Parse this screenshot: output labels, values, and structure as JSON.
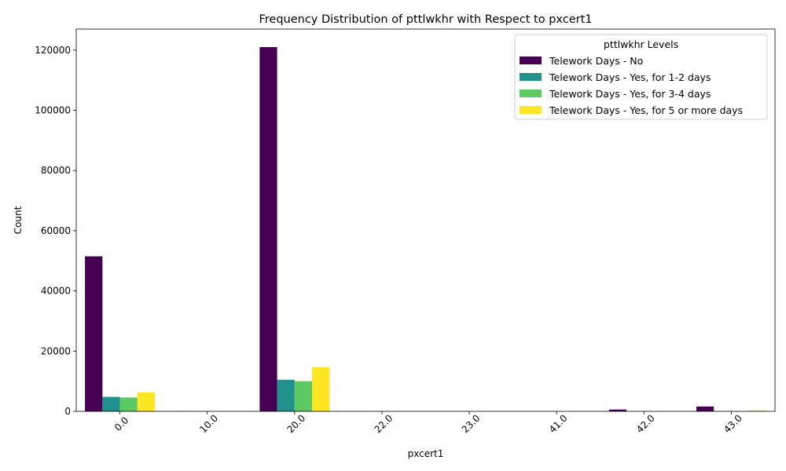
{
  "chart_data": {
    "type": "bar",
    "title": "Frequency Distribution of pttlwkhr with Respect to pxcert1",
    "xlabel": "pxcert1",
    "ylabel": "Count",
    "categories": [
      "0.0",
      "10.0",
      "20.0",
      "22.0",
      "23.0",
      "41.0",
      "42.0",
      "43.0"
    ],
    "ylim": [
      0,
      127000
    ],
    "yticks": [
      0,
      20000,
      40000,
      60000,
      80000,
      100000,
      120000
    ],
    "grid": false,
    "legend": {
      "title": "pttlwkhr Levels",
      "placement": "top-right"
    },
    "series": [
      {
        "name": "Telework Days - No",
        "color": "#440154",
        "values": [
          51500,
          40,
          121000,
          15,
          8,
          5,
          600,
          1600
        ]
      },
      {
        "name": "Telework Days - Yes, for 1-2 days",
        "color": "#21918c",
        "values": [
          4800,
          5,
          10500,
          3,
          2,
          1,
          30,
          60
        ]
      },
      {
        "name": "Telework Days - Yes, for 3-4 days",
        "color": "#5ec962",
        "values": [
          4600,
          5,
          10000,
          3,
          2,
          1,
          25,
          50
        ]
      },
      {
        "name": "Telework Days - Yes, for 5 or more days",
        "color": "#fde725",
        "values": [
          6300,
          8,
          14700,
          4,
          2,
          1,
          35,
          300
        ]
      }
    ]
  }
}
